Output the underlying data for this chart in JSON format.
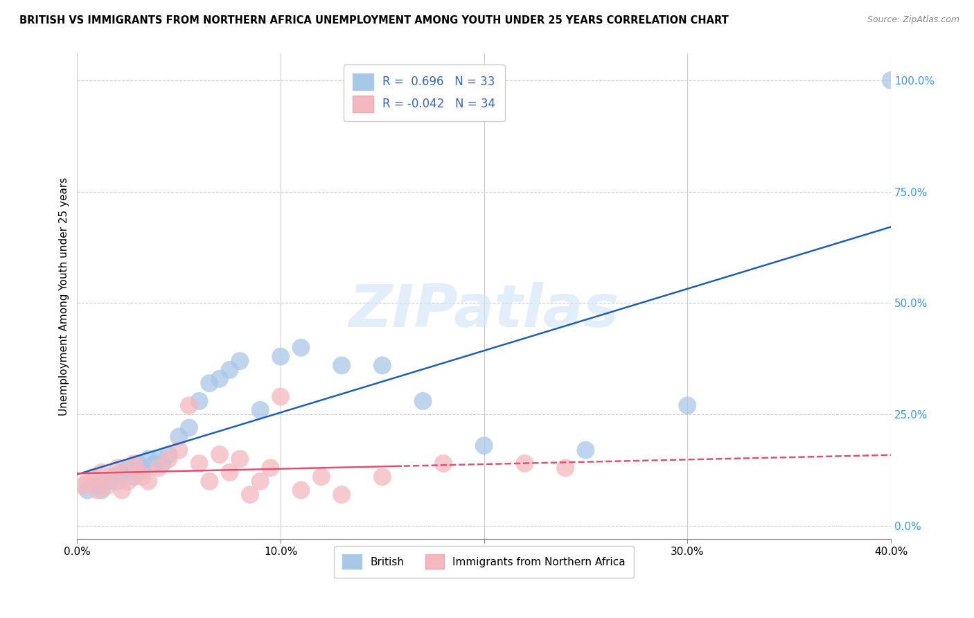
{
  "title": "BRITISH VS IMMIGRANTS FROM NORTHERN AFRICA UNEMPLOYMENT AMONG YOUTH UNDER 25 YEARS CORRELATION CHART",
  "source": "Source: ZipAtlas.com",
  "xlabel_ticks": [
    "0.0%",
    "10.0%",
    "20.0%",
    "30.0%",
    "40.0%"
  ],
  "xlabel_tick_vals": [
    0,
    10,
    20,
    30,
    40
  ],
  "ylabel": "Unemployment Among Youth under 25 years",
  "ylabel_right_ticks": [
    "0.0%",
    "25.0%",
    "50.0%",
    "75.0%",
    "100.0%"
  ],
  "ylabel_right_tick_vals": [
    0,
    25,
    50,
    75,
    100
  ],
  "xlim": [
    0,
    40
  ],
  "ylim": [
    -3,
    106
  ],
  "R_british": 0.696,
  "N_british": 33,
  "R_immigrants": -0.042,
  "N_immigrants": 34,
  "british_color": "#a8c8e8",
  "immigrant_color": "#f4b8c0",
  "trend_british_color": "#2060b0",
  "trend_immigrant_color": "#e05070",
  "background_color": "#ffffff",
  "watermark": "ZIPatlas",
  "british_x": [
    0.5,
    1.0,
    1.2,
    1.5,
    1.8,
    2.0,
    2.2,
    2.5,
    2.8,
    3.0,
    3.2,
    3.5,
    3.8,
    4.0,
    4.2,
    4.5,
    5.0,
    5.5,
    6.0,
    6.5,
    7.0,
    7.5,
    8.0,
    9.0,
    10.0,
    11.0,
    13.0,
    15.0,
    17.0,
    20.0,
    25.0,
    30.0,
    40.0
  ],
  "british_y": [
    8,
    9,
    8,
    10,
    11,
    10,
    12,
    13,
    11,
    14,
    13,
    15,
    14,
    15,
    14,
    16,
    20,
    22,
    28,
    32,
    33,
    35,
    37,
    26,
    38,
    40,
    36,
    36,
    28,
    18,
    17,
    27,
    100
  ],
  "immigrant_x": [
    0.3,
    0.5,
    0.8,
    1.0,
    1.2,
    1.5,
    1.8,
    2.0,
    2.2,
    2.5,
    2.8,
    3.0,
    3.2,
    3.5,
    4.0,
    4.5,
    5.0,
    5.5,
    6.0,
    6.5,
    7.0,
    7.5,
    8.0,
    8.5,
    9.0,
    9.5,
    10.0,
    11.0,
    12.0,
    13.0,
    15.0,
    18.0,
    22.0,
    24.0
  ],
  "immigrant_y": [
    9,
    10,
    11,
    8,
    12,
    9,
    11,
    13,
    8,
    10,
    14,
    12,
    11,
    10,
    13,
    15,
    17,
    27,
    14,
    10,
    16,
    12,
    15,
    7,
    10,
    13,
    29,
    8,
    11,
    7,
    11,
    14,
    14,
    13
  ],
  "bottom_legend_labels": [
    "British",
    "Immigrants from Northern Africa"
  ]
}
